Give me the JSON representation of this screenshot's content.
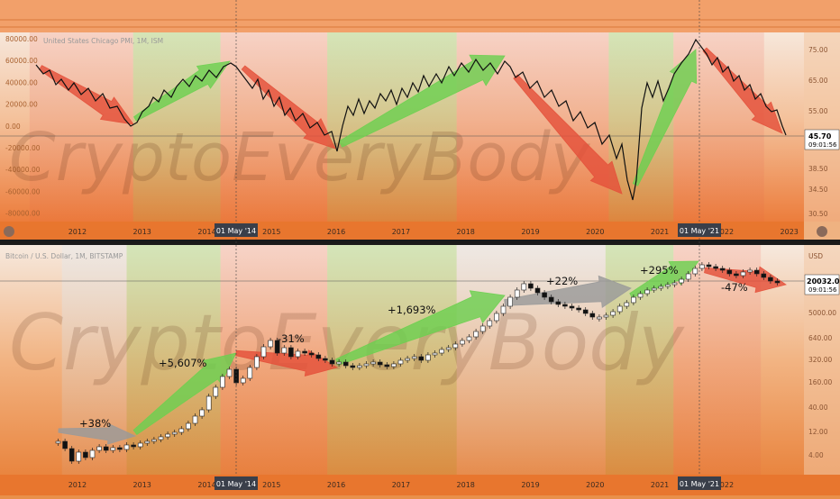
{
  "top_panel": {
    "title": "United States Chicago PMI, 1M, ISM",
    "y_ticks": [
      "80000.00",
      "60000.00",
      "40000.00",
      "20000.00",
      "0.00",
      "-20000.00",
      "-40000.00",
      "-60000.00",
      "-80000.00"
    ],
    "right_ticks": [
      "75.00",
      "65.00",
      "55.00",
      "38.50",
      "34.50",
      "30.50"
    ],
    "price_tag": "45.70",
    "price_time": "09:01:56",
    "x_labels": [
      "2012",
      "2013",
      "2014",
      "2015",
      "2016",
      "2017",
      "2018",
      "2019",
      "2020",
      "2021",
      "2022",
      "2023"
    ],
    "cursor_labels": [
      "01 May '14",
      "01 May '21"
    ]
  },
  "bottom_panel": {
    "title": "Bitcoin / U.S. Dollar, 1M, BITSTAMP",
    "y_ticks": [
      "USD",
      "5000.00",
      "640.00",
      "320.00",
      "160.00",
      "40.00",
      "12.00",
      "4.00"
    ],
    "price_tag": "20032.00",
    "price_time": "09:01:56",
    "x_labels": [
      "2012",
      "2013",
      "2014",
      "2015",
      "2016",
      "2017",
      "2018",
      "2019",
      "2020",
      "2021",
      "2022"
    ],
    "cursor_labels": [
      "01 May '14",
      "01 May '21"
    ],
    "annotations": [
      "+38%",
      "+5,607%",
      "-31%",
      "+1,693%",
      "+22%",
      "+295%",
      "-47%"
    ]
  },
  "watermark": "CryptoEveryBody",
  "colors": {
    "up_arrow": "#6cd050",
    "down_arrow": "#e4503a",
    "flat_arrow": "#9a9a9a",
    "line": "#111111"
  },
  "chart_data": [
    {
      "type": "line",
      "title": "United States Chicago PMI, 1M, ISM",
      "x_range": [
        2011.4,
        2023.0
      ],
      "phases": [
        {
          "from": 2011.4,
          "to": 2013.0,
          "trend": "down"
        },
        {
          "from": 2013.0,
          "to": 2014.35,
          "trend": "up"
        },
        {
          "from": 2014.35,
          "to": 2016.0,
          "trend": "down"
        },
        {
          "from": 2016.0,
          "to": 2018.0,
          "trend": "up"
        },
        {
          "from": 2018.0,
          "to": 2020.35,
          "trend": "down"
        },
        {
          "from": 2020.35,
          "to": 2021.35,
          "trend": "up"
        },
        {
          "from": 2021.35,
          "to": 2022.7,
          "trend": "down"
        }
      ],
      "last_value": 45.7
    },
    {
      "type": "candlestick",
      "title": "Bitcoin / U.S. Dollar, 1M, BITSTAMP",
      "y_scale": "log",
      "moves": [
        {
          "label": "+38%",
          "trend": "flat"
        },
        {
          "label": "+5,607%",
          "trend": "up"
        },
        {
          "label": "-31%",
          "trend": "down"
        },
        {
          "label": "+1,693%",
          "trend": "up"
        },
        {
          "label": "+22%",
          "trend": "flat"
        },
        {
          "label": "+295%",
          "trend": "up"
        },
        {
          "label": "-47%",
          "trend": "down"
        }
      ],
      "last_price": 20032.0
    }
  ]
}
